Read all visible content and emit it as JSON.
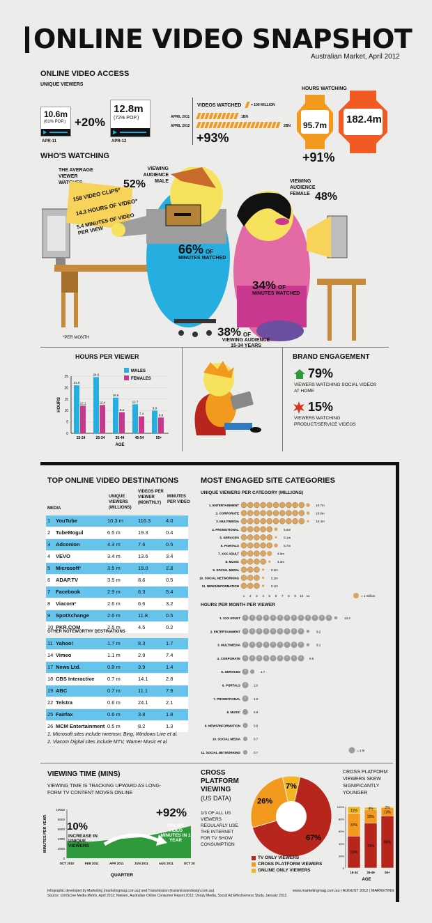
{
  "header": {
    "title": "ONLINE VIDEO SNAPSHOT",
    "subtitle": "Australian Market, April 2012"
  },
  "access": {
    "title": "ONLINE VIDEO ACCESS",
    "unique_label": "UNIQUE VIEWERS",
    "apr11_value": "10.6m",
    "apr11_pop": "(61% POP.)",
    "apr11_label": "APR-11",
    "apr12_value": "12.8m",
    "apr12_pop": "(72% POP.)",
    "apr12_label": "APR-12",
    "growth": "+20%",
    "videos_title": "VIDEOS WATCHED",
    "videos_legend": "= 100 million",
    "videos_rows": [
      {
        "label": "APRIL 2011",
        "value": "1bn",
        "count": 10
      },
      {
        "label": "APRIL 2012",
        "value": "2bn",
        "count": 20
      }
    ],
    "videos_growth": "+93%",
    "hours_title": "HOURS WATCHING",
    "hours_2011": "95.7m",
    "hours_2012": "182.4m",
    "hours_growth": "+91%"
  },
  "who": {
    "title": "WHO'S WATCHING",
    "average_label": "THE AVERAGE VIEWER WATCHES",
    "stats": [
      "158 VIDEO CLIPS*",
      "14.3 HOURS OF VIDEO*",
      "5.4 MINUTES OF VIDEO PER VIEW"
    ],
    "male_pct": "52%",
    "male_label": "VIEWING AUDIENCE MALE",
    "female_pct": "48%",
    "female_label": "VIEWING AUDIENCE FEMALE",
    "male_minutes_pct": "66%",
    "male_minutes_label_a": "OF",
    "male_minutes_label": "MINUTES WATCHED",
    "female_minutes_pct": "34%",
    "female_minutes_label_a": "OF",
    "female_minutes_label": "MINUTES WATCHED",
    "footnote": "*PER MONTH",
    "youth_pct": "38%",
    "youth_label_a": "OF",
    "youth_label": "VIEWING AUDIENCE 15-34 YEARS"
  },
  "brand": {
    "title": "BRAND ENGAGEMENT",
    "home_pct": "79%",
    "home_label": "VIEWERS WATCHING SOCIAL VIDEOS AT HOME",
    "product_pct": "15%",
    "product_label": "VIEWERS WATCHING PRODUCT/SERVICE VIDEOS"
  },
  "colors": {
    "male": "#27aee0",
    "female": "#c8388e",
    "orange": "#f29a1e",
    "red": "#b7261c",
    "green": "#2e9a3c",
    "beige": "#d9a55f",
    "gray": "#9c9c9c"
  },
  "top_table": {
    "title": "TOP ONLINE VIDEO DESTINATIONS",
    "headers": [
      "MEDIA",
      "UNIQUE VIEWERS (MILLIONS)",
      "VIDEOS PER VIEWER (MONTHLY)",
      "MINUTES PER VIDEO"
    ],
    "rows": [
      {
        "rank": "1",
        "name": "YouTube",
        "uv": "10.3 m",
        "vpv": "116.3",
        "mpv": "4.0"
      },
      {
        "rank": "2",
        "name": "TubeMogul",
        "uv": "6.5 m",
        "vpv": "19.3",
        "mpv": "0.4"
      },
      {
        "rank": "3",
        "name": "Adconion",
        "uv": "4.3 m",
        "vpv": "7.6",
        "mpv": "0.5"
      },
      {
        "rank": "4",
        "name": "VEVO",
        "uv": "3.4 m",
        "vpv": "13.6",
        "mpv": "3.4"
      },
      {
        "rank": "5",
        "name": "Microsoft¹",
        "uv": "3.5 m",
        "vpv": "19.0",
        "mpv": "2.8"
      },
      {
        "rank": "6",
        "name": "ADAP.TV",
        "uv": "3.5 m",
        "vpv": "8.6",
        "mpv": "0.5"
      },
      {
        "rank": "7",
        "name": "Facebook",
        "uv": "2.9 m",
        "vpv": "6.3",
        "mpv": "5.4"
      },
      {
        "rank": "8",
        "name": "Viacom²",
        "uv": "2.6 m",
        "vpv": "6.6",
        "mpv": "3.2"
      },
      {
        "rank": "9",
        "name": "SpotXchange",
        "uv": "2.6 m",
        "vpv": "11.8",
        "mpv": "0.5"
      },
      {
        "rank": "10",
        "name": "PKR.COM",
        "uv": "2.5 m",
        "vpv": "4.5",
        "mpv": "0.2"
      }
    ],
    "other_title": "OTHER NOTEWORTHY DESTINATIONS",
    "other_rows": [
      {
        "rank": "11",
        "name": "Yahoo!",
        "uv": "1.7 m",
        "vpv": "8.3",
        "mpv": "1.7"
      },
      {
        "rank": "14",
        "name": "Vimeo",
        "uv": "1.1 m",
        "vpv": "2.9",
        "mpv": "7.4"
      },
      {
        "rank": "17",
        "name": "News Ltd.",
        "uv": "0.8 m",
        "vpv": "3.9",
        "mpv": "1.4"
      },
      {
        "rank": "18",
        "name": "CBS Interactive",
        "uv": "0.7 m",
        "vpv": "14.1",
        "mpv": "2.8"
      },
      {
        "rank": "19",
        "name": "ABC",
        "uv": "0.7 m",
        "vpv": "11.1",
        "mpv": "7.9"
      },
      {
        "rank": "22",
        "name": "Telstra",
        "uv": "0.6 m",
        "vpv": "24.1",
        "mpv": "2.1"
      },
      {
        "rank": "25",
        "name": "Fairfax",
        "uv": "0.6 m",
        "vpv": "3.8",
        "mpv": "1.8"
      },
      {
        "rank": "26",
        "name": "MCM Entertainment",
        "uv": "0.5 m",
        "vpv": "8.2",
        "mpv": "1.3"
      }
    ],
    "notes": [
      "1.  Microsoft sites include ninemsn, Bing, Windows Live et al.",
      "2.  Viacom Digital sites include MTV, Warner Music et al."
    ]
  },
  "categories": {
    "title": "MOST ENGAGED SITE CATEGORIES",
    "uv_title": "UNIQUE VIEWERS PER CATEGORY (MILLIONS)",
    "uv_legend": "= 1 million",
    "uv_axis": [
      "1",
      "2",
      "3",
      "4",
      "5",
      "6",
      "7",
      "8",
      "9",
      "10",
      "11"
    ],
    "hpm_title": "HOURS PER MONTH PER VIEWER",
    "hpm_legend": "= 1 hr"
  },
  "viewing_time": {
    "title": "VIEWING TIME (MINS)",
    "desc": "VIEWING TIME IS TRACKING UPWARD AS LONG-FORM TV CONTENT MOVES ONLINE",
    "pct_left": "10%",
    "left_label": "INCREASE IN UNIQUE VIEWERS",
    "pct_right": "+92%",
    "right_label": "ONLINE VIDEO MINUTES IN 1 YEAR"
  },
  "cross": {
    "title": "CROSS PLATFORM VIEWING",
    "subtitle": "(US DATA)",
    "desc": "1/3 OF ALL US VIEWERS REGULARLY USE THE INTERNET FOR TV SHOW CONSUMPTION",
    "legend": [
      "TV ONLY VIEWERS",
      "CROSS PLATFORM VIEWERS",
      "ONLINE ONLY VIEWERS"
    ],
    "age_title": "CROSS PLATFORM VIEWERS SKEW SIGNIFICANTLY YOUNGER"
  },
  "footer": {
    "credit": "Infographic developed by Marketing (marketingmag.com.au) and Transmission (transmissiondesign.com.au).",
    "source": "Source: comScore Media Metrix, April 2012; Nielsen, Australian Online Consumer Report 2012; Unruly Media, Social Ad Effectiveness Study, January 2012.",
    "right": "www.marketingmag.com.au  |  AUGUST 2012  |  MARKETING"
  },
  "chart_data": [
    {
      "type": "bar",
      "categories": [
        "15-24",
        "25-34",
        "35-44",
        "45-54",
        "55+"
      ],
      "series": [
        {
          "name": "MALES",
          "values": [
            21.0,
            24.6,
            15.6,
            12.7,
            9.9
          ]
        },
        {
          "name": "FEMALES",
          "values": [
            12.1,
            12.4,
            9.2,
            7.4,
            6.9
          ]
        }
      ],
      "title": "HOURS PER VIEWER",
      "xlabel": "AGE",
      "ylabel": "HOURS",
      "ylim": [
        0,
        25
      ],
      "yticks": [
        "0",
        "5",
        "10",
        "15",
        "20",
        "25"
      ],
      "legend": "top-right"
    },
    {
      "type": "bar",
      "orientation": "horizontal",
      "categories": [
        "1. ENTERTAINMENT",
        "2. CORPORATE",
        "3. MULTIMEDIA",
        "4. PROMOTIONAL",
        "5. SERVICES",
        "6. PORTALS",
        "7. XXX ADULT",
        "8. MUSIC",
        "9. SOCIAL MEDIA",
        "10. SOCIAL NETWORKING",
        "11. NEWS/INFORMATION"
      ],
      "values": [
        10.7,
        10.6,
        10.4,
        5.6,
        5.1,
        5.7,
        4.9,
        4.3,
        3.3,
        3.2,
        3.1
      ],
      "labels": [
        "10.7m",
        "10.6m",
        "10.4m",
        "5.6m",
        "5.1m",
        "5.7m",
        "4.9m",
        "4.3m",
        "3.3m",
        "3.2m",
        "3.1m"
      ],
      "title": "UNIQUE VIEWERS PER CATEGORY (MILLIONS)",
      "xlim": [
        0,
        11
      ]
    },
    {
      "type": "bar",
      "orientation": "horizontal",
      "categories": [
        "1. XXX ADULT",
        "2. ENTERTAINMENT",
        "3. MULTIMEDIA",
        "4. CORPORATE",
        "5. SERVICES",
        "6. PORTALS",
        "7. PROMOTIONAL",
        "8. MUSIC",
        "9. NEWS/INFORMATION",
        "10. SOCIAL MEDIA",
        "11. SOCIAL NETWORKING"
      ],
      "values": [
        13.4,
        9.2,
        9.1,
        9.0,
        1.7,
        1.0,
        1.0,
        0.9,
        0.8,
        0.7,
        0.7
      ],
      "labels": [
        "13.4",
        "9.2",
        "9.1",
        "9.0",
        "1.7",
        "1.0",
        "1.0",
        "0.9",
        "0.8",
        "0.7",
        "0.7"
      ],
      "title": "HOURS PER MONTH PER VIEWER"
    },
    {
      "type": "area",
      "x": [
        "OCT 2010",
        "FEB 2011",
        "APR 2011",
        "JUN 2011",
        "AUG 2011",
        "OCT 2011"
      ],
      "values": [
        3500,
        3400,
        3900,
        4300,
        5400,
        6600
      ],
      "title": "VIEWING TIME (MINS)",
      "xlabel": "QUARTER",
      "ylabel": "MINUTES PER YEAR",
      "ylim": [
        0,
        10000
      ],
      "yticks": [
        "0",
        "2000",
        "4000",
        "6000",
        "8000",
        "10000"
      ]
    },
    {
      "type": "pie",
      "categories": [
        "TV ONLY VIEWERS",
        "CROSS PLATFORM VIEWERS",
        "ONLINE ONLY VIEWERS"
      ],
      "values": [
        67,
        26,
        7
      ],
      "labels": [
        "67%",
        "26%",
        "7%"
      ]
    },
    {
      "type": "bar",
      "stacked": true,
      "categories": [
        "18-34",
        "35-49",
        "50+"
      ],
      "series": [
        {
          "name": "TV ONLY VIEWERS",
          "values": [
            52,
            73,
            85
          ],
          "labels": [
            "52%",
            "73%",
            "85%"
          ]
        },
        {
          "name": "CROSS PLATFORM VIEWERS",
          "values": [
            37,
            22,
            13
          ],
          "labels": [
            "37%",
            "22%",
            "13%"
          ]
        },
        {
          "name": "ONLINE ONLY VIEWERS",
          "values": [
            11,
            4,
            2
          ],
          "labels": [
            "11%",
            "4%",
            "2%"
          ]
        }
      ],
      "xlabel": "AGE",
      "ylim": [
        0,
        100
      ],
      "yticks": [
        "0",
        "20%",
        "40%",
        "60%",
        "80%",
        "100%"
      ]
    }
  ]
}
